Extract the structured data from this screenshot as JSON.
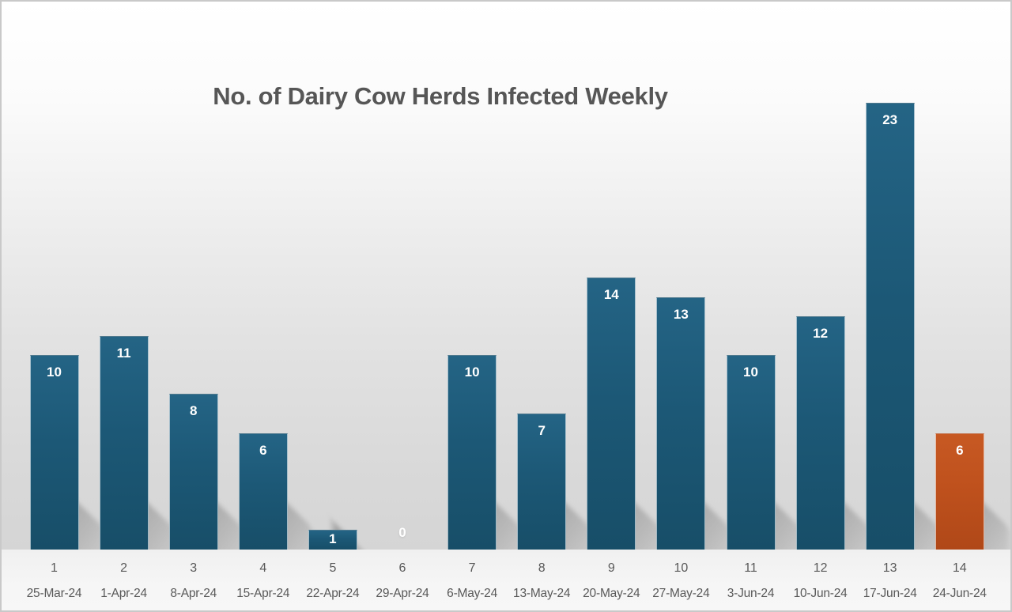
{
  "chart_data": {
    "type": "bar",
    "title": "No. of Dairy Cow Herds Infected Weekly",
    "categories": [
      "1",
      "2",
      "3",
      "4",
      "5",
      "6",
      "7",
      "8",
      "9",
      "10",
      "11",
      "12",
      "13",
      "14"
    ],
    "category_dates": [
      "25-Mar-24",
      "1-Apr-24",
      "8-Apr-24",
      "15-Apr-24",
      "22-Apr-24",
      "29-Apr-24",
      "6-May-24",
      "13-May-24",
      "20-May-24",
      "27-May-24",
      "3-Jun-24",
      "10-Jun-24",
      "17-Jun-24",
      "24-Jun-24"
    ],
    "values": [
      10,
      11,
      8,
      6,
      1,
      0,
      10,
      7,
      14,
      13,
      10,
      12,
      23,
      6
    ],
    "highlight_index": 13,
    "ylim": [
      0,
      23
    ],
    "grid": false,
    "legend": false,
    "data_labels": "inside-end",
    "colors": {
      "bar": "#1d5a78",
      "bar_gradient_top": "#246485",
      "bar_gradient_mid": "#1c5876",
      "bar_gradient_bottom": "#174e68",
      "highlight_bar": "#c0521e",
      "highlight_gradient_top": "#c75923",
      "highlight_gradient_mid": "#bf511d",
      "highlight_gradient_bottom": "#b04818",
      "data_label": "#ffffff",
      "title_text": "#565656",
      "axis_text": "#595959"
    }
  }
}
